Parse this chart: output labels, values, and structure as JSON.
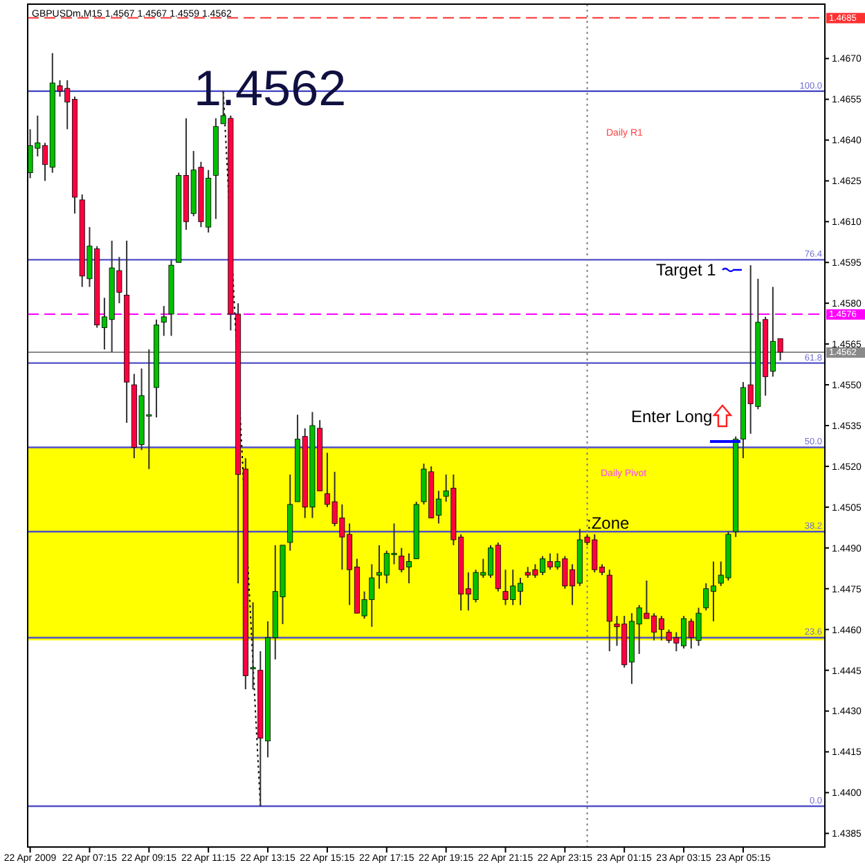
{
  "chart_data": {
    "type": "candlestick",
    "title": "GBPUSDm,M15  1.4567 1.4567 1.4559 1.4562",
    "x": [
      "2009-04-22T05:15",
      "2009-04-22T05:30",
      "2009-04-22T05:45",
      "2009-04-22T06:00",
      "2009-04-22T06:15",
      "2009-04-22T06:30",
      "2009-04-22T06:45",
      "2009-04-22T07:00",
      "2009-04-22T07:15",
      "2009-04-22T07:30",
      "2009-04-22T07:45",
      "2009-04-22T08:00",
      "2009-04-22T08:15",
      "2009-04-22T08:30",
      "2009-04-22T08:45",
      "2009-04-22T09:00",
      "2009-04-22T09:15",
      "2009-04-22T09:30",
      "2009-04-22T09:45",
      "2009-04-22T10:00",
      "2009-04-22T10:15",
      "2009-04-22T10:30",
      "2009-04-22T10:45",
      "2009-04-22T11:00",
      "2009-04-22T11:15",
      "2009-04-22T11:30",
      "2009-04-22T11:45",
      "2009-04-22T12:00",
      "2009-04-22T12:15",
      "2009-04-22T12:30",
      "2009-04-22T12:45",
      "2009-04-22T13:00",
      "2009-04-22T13:15",
      "2009-04-22T13:30",
      "2009-04-22T13:45",
      "2009-04-22T14:00",
      "2009-04-22T14:15",
      "2009-04-22T14:30",
      "2009-04-22T14:45",
      "2009-04-22T15:00",
      "2009-04-22T15:15",
      "2009-04-22T15:30",
      "2009-04-22T15:45",
      "2009-04-22T16:00",
      "2009-04-22T16:15",
      "2009-04-22T16:30",
      "2009-04-22T16:45",
      "2009-04-22T17:00",
      "2009-04-22T17:15",
      "2009-04-22T17:30",
      "2009-04-22T17:45",
      "2009-04-22T18:00",
      "2009-04-22T18:15",
      "2009-04-22T18:30",
      "2009-04-22T18:45",
      "2009-04-22T19:00",
      "2009-04-22T19:15",
      "2009-04-22T19:30",
      "2009-04-22T19:45",
      "2009-04-22T20:00",
      "2009-04-22T20:15",
      "2009-04-22T20:30",
      "2009-04-22T20:45",
      "2009-04-22T21:00",
      "2009-04-22T21:15",
      "2009-04-22T21:30",
      "2009-04-22T21:45",
      "2009-04-22T22:00",
      "2009-04-22T22:15",
      "2009-04-22T22:30",
      "2009-04-22T22:45",
      "2009-04-22T23:00",
      "2009-04-22T23:15",
      "2009-04-22T23:30",
      "2009-04-22T23:45",
      "2009-04-23T00:00",
      "2009-04-23T00:15",
      "2009-04-23T00:30",
      "2009-04-23T00:45",
      "2009-04-23T01:00",
      "2009-04-23T01:15",
      "2009-04-23T01:30",
      "2009-04-23T01:45",
      "2009-04-23T02:00",
      "2009-04-23T02:15",
      "2009-04-23T02:30",
      "2009-04-23T02:45",
      "2009-04-23T03:00",
      "2009-04-23T03:15",
      "2009-04-23T03:30",
      "2009-04-23T03:45",
      "2009-04-23T04:00",
      "2009-04-23T04:15",
      "2009-04-23T04:30",
      "2009-04-23T04:45",
      "2009-04-23T05:00",
      "2009-04-23T05:15",
      "2009-04-23T05:30",
      "2009-04-23T05:45",
      "2009-04-23T06:00",
      "2009-04-23T06:15",
      "2009-04-23T06:30"
    ],
    "ohlc": [
      [
        1.4628,
        1.4644,
        1.4626,
        1.4638
      ],
      [
        1.4637,
        1.4649,
        1.4634,
        1.4639
      ],
      [
        1.4638,
        1.4639,
        1.4625,
        1.4631
      ],
      [
        1.463,
        1.4672,
        1.4628,
        1.4661
      ],
      [
        1.466,
        1.4662,
        1.4656,
        1.4658
      ],
      [
        1.4659,
        1.4662,
        1.4644,
        1.4654
      ],
      [
        1.4655,
        1.4656,
        1.4613,
        1.4619
      ],
      [
        1.4618,
        1.462,
        1.4586,
        1.459
      ],
      [
        1.4589,
        1.4608,
        1.4586,
        1.4601
      ],
      [
        1.46,
        1.4601,
        1.4571,
        1.4572
      ],
      [
        1.4571,
        1.4582,
        1.4563,
        1.4575
      ],
      [
        1.4574,
        1.4603,
        1.4562,
        1.4593
      ],
      [
        1.4592,
        1.4597,
        1.458,
        1.4584
      ],
      [
        1.4583,
        1.4603,
        1.4536,
        1.4551
      ],
      [
        1.455,
        1.4554,
        1.4523,
        1.4527
      ],
      [
        1.4528,
        1.4556,
        1.4526,
        1.4546
      ],
      [
        1.4539,
        1.4563,
        1.4519,
        1.4539
      ],
      [
        1.4549,
        1.4574,
        1.4538,
        1.4572
      ],
      [
        1.4573,
        1.4579,
        1.4568,
        1.4575
      ],
      [
        1.4576,
        1.4596,
        1.4568,
        1.4594
      ],
      [
        1.4595,
        1.4628,
        1.4595,
        1.4627
      ],
      [
        1.4627,
        1.4648,
        1.4607,
        1.461
      ],
      [
        1.4613,
        1.4636,
        1.4612,
        1.4629
      ],
      [
        1.463,
        1.4632,
        1.4608,
        1.461
      ],
      [
        1.4608,
        1.4629,
        1.4606,
        1.4626
      ],
      [
        1.4627,
        1.4648,
        1.4611,
        1.4645
      ],
      [
        1.4646,
        1.4658,
        1.4646,
        1.4649
      ],
      [
        1.4648,
        1.4649,
        1.457,
        1.4576
      ],
      [
        1.4576,
        1.458,
        1.4477,
        1.4517
      ],
      [
        1.4519,
        1.4523,
        1.4438,
        1.4443
      ],
      [
        1.4446,
        1.447,
        1.4438,
        1.4446
      ],
      [
        1.4445,
        1.4452,
        1.4395,
        1.442
      ],
      [
        1.4419,
        1.4463,
        1.4413,
        1.4457
      ],
      [
        1.4457,
        1.4491,
        1.4449,
        1.4474
      ],
      [
        1.4472,
        1.4491,
        1.4462,
        1.4491
      ],
      [
        1.4492,
        1.4517,
        1.4489,
        1.4506
      ],
      [
        1.4507,
        1.4539,
        1.4507,
        1.453
      ],
      [
        1.4531,
        1.4534,
        1.4501,
        1.4505
      ],
      [
        1.4505,
        1.454,
        1.4501,
        1.4535
      ],
      [
        1.4534,
        1.4537,
        1.4511,
        1.4511
      ],
      [
        1.451,
        1.4525,
        1.4505,
        1.4506
      ],
      [
        1.4507,
        1.4518,
        1.4498,
        1.4499
      ],
      [
        1.4501,
        1.4506,
        1.4482,
        1.4494
      ],
      [
        1.4495,
        1.4499,
        1.4469,
        1.4482
      ],
      [
        1.4483,
        1.4486,
        1.4466,
        1.4466
      ],
      [
        1.4465,
        1.4474,
        1.4464,
        1.4471
      ],
      [
        1.4471,
        1.4484,
        1.4461,
        1.4479
      ],
      [
        1.448,
        1.4491,
        1.4475,
        1.4481
      ],
      [
        1.448,
        1.4489,
        1.4477,
        1.4488
      ],
      [
        1.4488,
        1.4499,
        1.4484,
        1.4488
      ],
      [
        1.4487,
        1.449,
        1.4481,
        1.4482
      ],
      [
        1.4483,
        1.4488,
        1.4477,
        1.4485
      ],
      [
        1.4486,
        1.4507,
        1.4486,
        1.4506
      ],
      [
        1.4507,
        1.4521,
        1.4506,
        1.4519
      ],
      [
        1.4518,
        1.452,
        1.4501,
        1.4501
      ],
      [
        1.4502,
        1.4511,
        1.4499,
        1.4508
      ],
      [
        1.4509,
        1.4517,
        1.4507,
        1.4511
      ],
      [
        1.4512,
        1.4517,
        1.4491,
        1.4493
      ],
      [
        1.4494,
        1.4495,
        1.4467,
        1.4473
      ],
      [
        1.4475,
        1.4481,
        1.4467,
        1.4473
      ],
      [
        1.4471,
        1.4482,
        1.447,
        1.4481
      ],
      [
        1.448,
        1.4486,
        1.4479,
        1.4481
      ],
      [
        1.448,
        1.4491,
        1.4479,
        1.449
      ],
      [
        1.4491,
        1.4492,
        1.4474,
        1.4475
      ],
      [
        1.4474,
        1.4482,
        1.4469,
        1.4471
      ],
      [
        1.4471,
        1.4482,
        1.4469,
        1.4476
      ],
      [
        1.4474,
        1.4479,
        1.4469,
        1.4477
      ],
      [
        1.4481,
        1.4483,
        1.4479,
        1.448
      ],
      [
        1.4482,
        1.4484,
        1.4479,
        1.448
      ],
      [
        1.4481,
        1.4487,
        1.448,
        1.4486
      ],
      [
        1.4485,
        1.4488,
        1.4482,
        1.4483
      ],
      [
        1.4483,
        1.4488,
        1.4482,
        1.4485
      ],
      [
        1.4486,
        1.4487,
        1.4475,
        1.4476
      ],
      [
        1.4482,
        1.4484,
        1.4469,
        1.4476
      ],
      [
        1.4477,
        1.4497,
        1.4476,
        1.4493
      ],
      [
        1.4494,
        1.4495,
        1.4491,
        1.4492
      ],
      [
        1.4493,
        1.4495,
        1.4481,
        1.4482
      ],
      [
        1.4483,
        1.4484,
        1.448,
        1.4481
      ],
      [
        1.448,
        1.4482,
        1.4452,
        1.4463
      ],
      [
        1.4462,
        1.4465,
        1.4454,
        1.4461
      ],
      [
        1.4462,
        1.4465,
        1.4446,
        1.4447
      ],
      [
        1.4448,
        1.4466,
        1.444,
        1.4463
      ],
      [
        1.4462,
        1.4469,
        1.4451,
        1.4468
      ],
      [
        1.4466,
        1.4478,
        1.4464,
        1.4464
      ],
      [
        1.4465,
        1.4466,
        1.4456,
        1.4459
      ],
      [
        1.4464,
        1.4465,
        1.4456,
        1.446
      ],
      [
        1.4459,
        1.446,
        1.4455,
        1.4456
      ],
      [
        1.4457,
        1.4459,
        1.4452,
        1.4455
      ],
      [
        1.4454,
        1.4465,
        1.4453,
        1.4464
      ],
      [
        1.4463,
        1.4464,
        1.4453,
        1.4457
      ],
      [
        1.4456,
        1.4468,
        1.4454,
        1.4466
      ],
      [
        1.4468,
        1.4477,
        1.4467,
        1.4475
      ],
      [
        1.4474,
        1.4485,
        1.4463,
        1.4476
      ],
      [
        1.4477,
        1.4485,
        1.4476,
        1.448
      ],
      [
        1.4479,
        1.4496,
        1.4478,
        1.4495
      ],
      [
        1.4496,
        1.4531,
        1.4494,
        1.453
      ],
      [
        1.453,
        1.4551,
        1.4523,
        1.4549
      ],
      [
        1.455,
        1.4594,
        1.4532,
        1.4543
      ],
      [
        1.4542,
        1.4589,
        1.4541,
        1.4573
      ],
      [
        1.4574,
        1.4575,
        1.4546,
        1.4553
      ],
      [
        1.4555,
        1.4586,
        1.4553,
        1.4566
      ],
      [
        1.4567,
        1.4567,
        1.4559,
        1.4562
      ]
    ],
    "colors": [
      "#00c000",
      "#00c000",
      "#ff0040",
      "#00c000",
      "#ff0040",
      "#ff0040",
      "#ff0040",
      "#ff0040",
      "#00c000",
      "#ff0040",
      "#00c000",
      "#00c000",
      "#ff0040",
      "#ff0040",
      "#ff0040",
      "#00c000",
      "#00c000",
      "#00c000",
      "#00c000",
      "#00c000",
      "#00c000",
      "#ff0040",
      "#00c000",
      "#ff0040",
      "#00c000",
      "#00c000",
      "#00c000",
      "#ff0040",
      "#ff0040",
      "#ff0040",
      "#00c000",
      "#ff0040",
      "#00c000",
      "#00c000",
      "#00c000",
      "#00c000",
      "#00c000",
      "#ff0040",
      "#00c000",
      "#ff0040",
      "#ff0040",
      "#ff0040",
      "#ff0040",
      "#ff0040",
      "#ff0040",
      "#00c000",
      "#00c000",
      "#00c000",
      "#00c000",
      "#00c000",
      "#ff0040",
      "#00c000",
      "#00c000",
      "#00c000",
      "#ff0040",
      "#00c000",
      "#00c000",
      "#ff0040",
      "#ff0040",
      "#ff0040",
      "#00c000",
      "#00c000",
      "#00c000",
      "#ff0040",
      "#ff0040",
      "#00c000",
      "#00c000",
      "#ff0040",
      "#ff0040",
      "#00c000",
      "#ff0040",
      "#00c000",
      "#ff0040",
      "#ff0040",
      "#00c000",
      "#ff0040",
      "#ff0040",
      "#ff0040",
      "#ff0040",
      "#ff0040",
      "#ff0040",
      "#00c000",
      "#00c000",
      "#ff0040",
      "#ff0040",
      "#ff0040",
      "#ff0040",
      "#ff0040",
      "#00c000",
      "#ff0040",
      "#00c000",
      "#00c000",
      "#00c000",
      "#00c000",
      "#00c000",
      "#00c000",
      "#00c000",
      "#ff0040",
      "#00c000",
      "#ff0040",
      "#00c000",
      "#ff0040"
    ],
    "series": [
      {
        "type": "line",
        "x": [
          "2009-04-22T11:45",
          "2009-04-22T13:00"
        ],
        "values": [
          1.4658,
          1.4395
        ],
        "color": "#000000",
        "line_style": "dotted"
      }
    ],
    "xlim": [
      "2009-04-22T05:10",
      "2009-04-23T08:00"
    ],
    "xticks": [
      {
        "value": "2009-04-22T05:15",
        "label": "22 Apr 2009"
      },
      {
        "value": "2009-04-22T07:15",
        "label": "22 Apr 07:15"
      },
      {
        "value": "2009-04-22T09:15",
        "label": "22 Apr 09:15"
      },
      {
        "value": "2009-04-22T11:15",
        "label": "22 Apr 11:15"
      },
      {
        "value": "2009-04-22T13:15",
        "label": "22 Apr 13:15"
      },
      {
        "value": "2009-04-22T15:15",
        "label": "22 Apr 15:15"
      },
      {
        "value": "2009-04-22T17:15",
        "label": "22 Apr 17:15"
      },
      {
        "value": "2009-04-22T19:15",
        "label": "22 Apr 19:15"
      },
      {
        "value": "2009-04-22T21:15",
        "label": "22 Apr 21:15"
      },
      {
        "value": "2009-04-22T23:15",
        "label": "22 Apr 23:15"
      },
      {
        "value": "2009-04-23T01:15",
        "label": "23 Apr 01:15"
      },
      {
        "value": "2009-04-23T03:15",
        "label": "23 Apr 03:15"
      },
      {
        "value": "2009-04-23T05:15",
        "label": "23 Apr 05:15"
      }
    ],
    "ylim": [
      1.438,
      1.469
    ],
    "yticks": [
      1.4385,
      {
        "value": 1.44,
        "label": "1.4400"
      },
      1.4415,
      {
        "value": 1.443,
        "label": "1.4430"
      },
      1.4445,
      {
        "value": 1.446,
        "label": "1.4460"
      },
      1.4475,
      {
        "value": 1.449,
        "label": "1.4490"
      },
      1.4505,
      {
        "value": 1.452,
        "label": "1.4520"
      },
      1.4535,
      {
        "value": 1.455,
        "label": "1.4550"
      },
      1.4565,
      {
        "value": 1.458,
        "label": "1.4580"
      },
      1.4595,
      {
        "value": 1.461,
        "label": "1.4610"
      },
      1.4625,
      {
        "value": 1.464,
        "label": "1.4640"
      },
      1.4655,
      {
        "value": 1.467,
        "label": "1.4670"
      }
    ],
    "bands": [
      {
        "axis": "y",
        "from": 1.4456,
        "to": 1.4527,
        "color": "#ffff00"
      }
    ],
    "ref_lines": [
      {
        "axis": "y",
        "value": 1.4685,
        "label": "1.4685",
        "color": "#ff3030",
        "line_style": "dashed"
      },
      {
        "axis": "y",
        "value": 1.4576,
        "label": "1.4576",
        "color": "#ff00ff",
        "line_style": "dashed"
      },
      {
        "axis": "y",
        "value": 1.4562,
        "label": "1.4562",
        "color": "#8a8a8a",
        "line_style": "solid"
      },
      {
        "axis": "y",
        "value": 1.4658,
        "color": "#5050c8"
      },
      {
        "axis": "y",
        "value": 1.4596,
        "color": "#5050c8"
      },
      {
        "axis": "y",
        "value": 1.4558,
        "color": "#5050c8"
      },
      {
        "axis": "y",
        "value": 1.4527,
        "color": "#5050c8"
      },
      {
        "axis": "y",
        "value": 1.4496,
        "color": "#5050c8"
      },
      {
        "axis": "y",
        "value": 1.4457,
        "color": "#5050c8"
      },
      {
        "axis": "y",
        "value": 1.4395,
        "color": "#5050c8"
      },
      {
        "axis": "x",
        "value": "2009-04-23T00:00",
        "color": "#808080",
        "line_style": "dotted"
      }
    ],
    "annotations": [
      "1.4562",
      "Daily R1",
      "Target 1",
      "Enter Long",
      ":Zone",
      "Daily Pivot",
      {
        "text": "100.0",
        "x": "2009-04-23T08:00",
        "y": 1.4658
      },
      {
        "text": "76.4",
        "x": "2009-04-23T08:00",
        "y": 1.4596
      },
      {
        "text": "61.8",
        "x": "2009-04-23T08:00",
        "y": 1.4558
      },
      {
        "text": "50.0",
        "x": "2009-04-23T08:00",
        "y": 1.4527
      },
      {
        "text": "38.2",
        "x": "2009-04-23T08:00",
        "y": 1.4496
      },
      {
        "text": "23.6",
        "x": "2009-04-23T08:00",
        "y": 1.4457
      },
      {
        "text": "0.0",
        "x": "2009-04-23T08:00",
        "y": 1.4395
      }
    ]
  }
}
